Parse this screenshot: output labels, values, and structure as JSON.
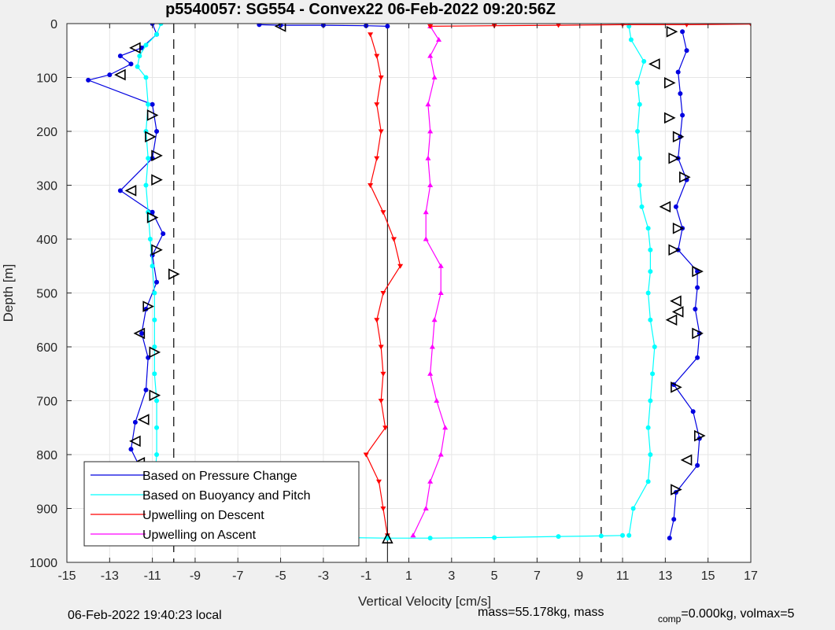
{
  "chart_data": {
    "type": "scatter",
    "title": "p5540057: SG554 - Convex22 06-Feb-2022 09:20:56Z",
    "xlabel": "Vertical Velocity [cm/s]",
    "ylabel": "Depth [m]",
    "xlim": [
      -15,
      17
    ],
    "ylim": [
      1000,
      0
    ],
    "y_reversed": true,
    "grid": true,
    "xticks": [
      -15,
      -13,
      -11,
      -9,
      -7,
      -5,
      -3,
      -1,
      1,
      3,
      5,
      7,
      9,
      11,
      13,
      15,
      17
    ],
    "yticks": [
      0,
      100,
      200,
      300,
      400,
      500,
      600,
      700,
      800,
      900,
      1000
    ],
    "reference_lines": {
      "solid_x": 0,
      "dashed_x": [
        -10,
        10
      ]
    },
    "legend_location": "bottom-left",
    "colors": {
      "pressure": "#0000e0",
      "buoyancy": "#00ffff",
      "descent": "#ff0000",
      "ascent": "#ff00ff",
      "axes_bg": "#ffffff",
      "fig_bg": "#f0f0f0",
      "grid": "#e6e6e6"
    },
    "legend": [
      {
        "label": "Based on Pressure Change",
        "color": "#0000e0"
      },
      {
        "label": "Based on Buoyancy and Pitch",
        "color": "#00ffff"
      },
      {
        "label": "Upwelling on Descent",
        "color": "#ff0000"
      },
      {
        "label": "Upwelling on Ascent",
        "color": "#ff00ff"
      }
    ],
    "series": [
      {
        "key": "pressure_descent",
        "legend_index": 0,
        "depth": [
          0,
          20,
          45,
          60,
          75,
          95,
          105,
          150,
          200,
          250,
          310,
          350,
          390,
          430,
          480,
          530,
          575,
          620,
          680,
          740,
          790,
          830,
          900,
          950
        ],
        "velocity": [
          -11,
          -10.8,
          -11.5,
          -12.5,
          -12,
          -13,
          -14,
          -11,
          -10.8,
          -11,
          -12.5,
          -11,
          -10.5,
          -11,
          -10.8,
          -11.3,
          -11.5,
          -11.2,
          -11.3,
          -11.8,
          -12,
          -11.5,
          -11.6,
          -11.7
        ]
      },
      {
        "key": "buoyancy_descent",
        "legend_index": 1,
        "depth": [
          0,
          20,
          40,
          60,
          80,
          100,
          150,
          200,
          250,
          300,
          350,
          400,
          450,
          500,
          550,
          600,
          650,
          700,
          750,
          800,
          850,
          900,
          950
        ],
        "velocity": [
          -10.6,
          -10.8,
          -11.3,
          -11.6,
          -11.7,
          -11.3,
          -11.2,
          -11.3,
          -11.2,
          -11.3,
          -11.2,
          -11.1,
          -11.0,
          -10.9,
          -10.9,
          -10.9,
          -10.9,
          -10.8,
          -10.8,
          -10.8,
          -10.9,
          -11.0,
          -11.0
        ]
      },
      {
        "key": "pressure_ascent",
        "legend_index": 0,
        "depth": [
          955,
          920,
          870,
          820,
          770,
          720,
          670,
          620,
          575,
          530,
          490,
          460,
          420,
          380,
          340,
          290,
          250,
          210,
          170,
          130,
          90,
          50,
          15
        ],
        "velocity": [
          13.2,
          13.4,
          13.5,
          14.5,
          14.6,
          14.3,
          13.4,
          14.5,
          14.6,
          14.4,
          14.5,
          14.5,
          13.6,
          13.8,
          13.5,
          14.0,
          13.6,
          13.7,
          13.8,
          13.7,
          13.6,
          14.0,
          13.8
        ]
      },
      {
        "key": "buoyancy_ascent",
        "legend_index": 1,
        "depth": [
          950,
          900,
          850,
          800,
          750,
          700,
          650,
          600,
          550,
          500,
          460,
          420,
          380,
          340,
          300,
          250,
          200,
          150,
          110,
          70,
          30,
          5
        ],
        "velocity": [
          11.3,
          11.5,
          12.2,
          12.3,
          12.2,
          12.3,
          12.4,
          12.5,
          12.3,
          12.2,
          12.3,
          12.3,
          12.2,
          11.9,
          11.8,
          11.8,
          11.7,
          11.8,
          11.7,
          12.0,
          11.4,
          11.3
        ]
      },
      {
        "key": "upwelling_descent",
        "legend_index": 2,
        "depth": [
          20,
          60,
          100,
          150,
          200,
          250,
          300,
          350,
          400,
          450,
          500,
          550,
          600,
          650,
          700,
          750,
          800,
          850,
          900,
          950
        ],
        "velocity": [
          -0.8,
          -0.5,
          -0.3,
          -0.5,
          -0.3,
          -0.5,
          -0.8,
          -0.2,
          0.3,
          0.6,
          -0.2,
          -0.5,
          -0.3,
          -0.2,
          -0.3,
          -0.1,
          -1.0,
          -0.4,
          -0.2,
          0.0
        ]
      },
      {
        "key": "upwelling_ascent",
        "legend_index": 3,
        "depth": [
          950,
          900,
          850,
          800,
          750,
          700,
          650,
          600,
          550,
          500,
          450,
          400,
          350,
          300,
          250,
          200,
          150,
          100,
          60,
          30,
          5
        ],
        "velocity": [
          1.2,
          1.8,
          2.0,
          2.5,
          2.7,
          2.3,
          2.0,
          2.1,
          2.2,
          2.5,
          2.5,
          1.8,
          1.8,
          2.0,
          1.9,
          2.0,
          1.9,
          2.2,
          2.0,
          2.4,
          2.0
        ]
      },
      {
        "key": "surface_transit",
        "legend_index": 0,
        "depth": [
          2,
          3,
          3,
          4,
          5
        ],
        "velocity": [
          -6,
          -5,
          -3,
          -1,
          0
        ]
      },
      {
        "key": "bottom_turn",
        "legend_index": 1,
        "depth": [
          950,
          951,
          952,
          954,
          955,
          955,
          954,
          952,
          951,
          950
        ],
        "velocity": [
          -11,
          -9,
          -5,
          -2,
          0,
          2,
          5,
          8,
          10,
          11
        ]
      },
      {
        "key": "surface_descent_red",
        "legend_index": 2,
        "depth": [
          5,
          4,
          3,
          2,
          2,
          1
        ],
        "velocity": [
          2,
          5,
          8,
          11,
          14,
          17
        ]
      }
    ],
    "markers": [
      {
        "symbol": "triangle-left",
        "depth": 5,
        "velocity": -5
      },
      {
        "symbol": "triangle-right",
        "depth": 15,
        "velocity": 13.3
      },
      {
        "symbol": "triangle-left",
        "depth": 45,
        "velocity": -11.8
      },
      {
        "symbol": "triangle-left",
        "depth": 75,
        "velocity": 12.5
      },
      {
        "symbol": "triangle-left",
        "depth": 95,
        "velocity": -12.5
      },
      {
        "symbol": "triangle-right",
        "depth": 110,
        "velocity": 13.2
      },
      {
        "symbol": "triangle-right",
        "depth": 170,
        "velocity": -11.0
      },
      {
        "symbol": "triangle-right",
        "depth": 175,
        "velocity": 13.2
      },
      {
        "symbol": "triangle-right",
        "depth": 210,
        "velocity": -11.1
      },
      {
        "symbol": "triangle-right",
        "depth": 210,
        "velocity": 13.6
      },
      {
        "symbol": "triangle-right",
        "depth": 245,
        "velocity": -10.8
      },
      {
        "symbol": "triangle-right",
        "depth": 250,
        "velocity": 13.4
      },
      {
        "symbol": "triangle-right",
        "depth": 290,
        "velocity": -10.8
      },
      {
        "symbol": "triangle-right",
        "depth": 285,
        "velocity": 13.9
      },
      {
        "symbol": "triangle-left",
        "depth": 310,
        "velocity": -12.0
      },
      {
        "symbol": "triangle-left",
        "depth": 340,
        "velocity": 13.0
      },
      {
        "symbol": "triangle-right",
        "depth": 360,
        "velocity": -11.0
      },
      {
        "symbol": "triangle-right",
        "depth": 380,
        "velocity": 13.6
      },
      {
        "symbol": "triangle-right",
        "depth": 420,
        "velocity": -10.8
      },
      {
        "symbol": "triangle-right",
        "depth": 420,
        "velocity": 13.4
      },
      {
        "symbol": "triangle-right",
        "depth": 460,
        "velocity": 14.5
      },
      {
        "symbol": "triangle-right",
        "depth": 465,
        "velocity": -10.0
      },
      {
        "symbol": "triangle-left",
        "depth": 515,
        "velocity": 13.5
      },
      {
        "symbol": "triangle-right",
        "depth": 525,
        "velocity": -11.2
      },
      {
        "symbol": "triangle-left",
        "depth": 535,
        "velocity": 13.6
      },
      {
        "symbol": "triangle-left",
        "depth": 550,
        "velocity": 13.3
      },
      {
        "symbol": "triangle-left",
        "depth": 575,
        "velocity": -11.6
      },
      {
        "symbol": "triangle-right",
        "depth": 575,
        "velocity": 14.5
      },
      {
        "symbol": "triangle-right",
        "depth": 610,
        "velocity": -10.9
      },
      {
        "symbol": "triangle-right",
        "depth": 675,
        "velocity": 13.5
      },
      {
        "symbol": "triangle-right",
        "depth": 690,
        "velocity": -10.9
      },
      {
        "symbol": "triangle-left",
        "depth": 735,
        "velocity": -11.4
      },
      {
        "symbol": "triangle-right",
        "depth": 765,
        "velocity": 14.6
      },
      {
        "symbol": "triangle-left",
        "depth": 775,
        "velocity": -11.8
      },
      {
        "symbol": "triangle-left",
        "depth": 810,
        "velocity": 14.0
      },
      {
        "symbol": "triangle-left",
        "depth": 815,
        "velocity": -11.6
      },
      {
        "symbol": "triangle-right",
        "depth": 865,
        "velocity": 13.5
      },
      {
        "symbol": "triangle-right",
        "depth": 895,
        "velocity": -10.9
      },
      {
        "symbol": "triangle-up",
        "depth": 945,
        "velocity": -11.7
      },
      {
        "symbol": "triangle-up",
        "depth": 955,
        "velocity": 0.0
      }
    ]
  },
  "footer": {
    "local_time": "06-Feb-2022 19:40:23 local",
    "mass_text": "mass=55.178kg, mass",
    "comp_subscript": "comp",
    "comp_text": "=0.000kg, volmax=5"
  }
}
